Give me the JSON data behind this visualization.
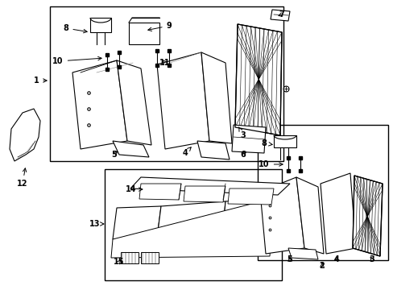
{
  "bg_color": "#ffffff",
  "lc": "#000000",
  "fig_w": 4.89,
  "fig_h": 3.6,
  "dpi": 100
}
